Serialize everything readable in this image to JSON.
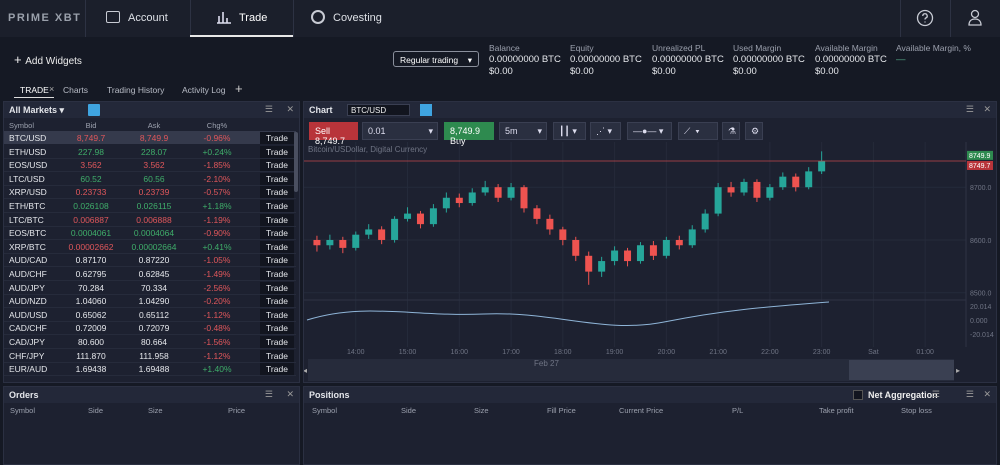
{
  "nav": {
    "logo": "PRIME XBT",
    "items": [
      "Account",
      "Trade",
      "Covesting"
    ]
  },
  "toolbar": {
    "add_widgets": "Add Widgets",
    "mode": "Regular trading",
    "stats": [
      {
        "label": "Balance",
        "btc": "0.00000000 BTC",
        "usd": "$0.00"
      },
      {
        "label": "Equity",
        "btc": "0.00000000 BTC",
        "usd": "$0.00"
      },
      {
        "label": "Unrealized PL",
        "btc": "0.00000000 BTC",
        "usd": "$0.00"
      },
      {
        "label": "Used Margin",
        "btc": "0.00000000 BTC",
        "usd": "$0.00"
      },
      {
        "label": "Available Margin",
        "btc": "0.00000000 BTC",
        "usd": "$0.00"
      },
      {
        "label": "Available Margin, %",
        "btc": "—"
      }
    ]
  },
  "tabs": [
    "TRADE",
    "Charts",
    "Trading History",
    "Activity Log"
  ],
  "markets": {
    "title": "All Markets",
    "columns": [
      "Symbol",
      "Bid",
      "Ask",
      "Chg%"
    ],
    "action": "Trade",
    "rows": [
      {
        "symbol": "BTC/USD",
        "bid": "8,749.7",
        "ask": "8,749.9",
        "chg": "-0.96%",
        "tone": "down"
      },
      {
        "symbol": "ETH/USD",
        "bid": "227.98",
        "ask": "228.07",
        "chg": "+0.24%",
        "tone": "up"
      },
      {
        "symbol": "EOS/USD",
        "bid": "3.562",
        "ask": "3.562",
        "chg": "-1.85%",
        "tone": "down"
      },
      {
        "symbol": "LTC/USD",
        "bid": "60.52",
        "ask": "60.56",
        "chg": "-2.10%",
        "tone": "up"
      },
      {
        "symbol": "XRP/USD",
        "bid": "0.23733",
        "ask": "0.23739",
        "chg": "-0.57%",
        "tone": "down"
      },
      {
        "symbol": "ETH/BTC",
        "bid": "0.026108",
        "ask": "0.026115",
        "chg": "+1.18%",
        "tone": "up"
      },
      {
        "symbol": "LTC/BTC",
        "bid": "0.006887",
        "ask": "0.006888",
        "chg": "-1.19%",
        "tone": "down"
      },
      {
        "symbol": "EOS/BTC",
        "bid": "0.0004061",
        "ask": "0.0004064",
        "chg": "-0.90%",
        "tone": "up"
      },
      {
        "symbol": "XRP/BTC",
        "bid": "0.00002662",
        "ask": "0.00002664",
        "chg": "+0.41%",
        "tone": "mixed"
      },
      {
        "symbol": "AUD/CAD",
        "bid": "0.87170",
        "ask": "0.87220",
        "chg": "-1.05%",
        "tone": "flat"
      },
      {
        "symbol": "AUD/CHF",
        "bid": "0.62795",
        "ask": "0.62845",
        "chg": "-1.49%",
        "tone": "flat"
      },
      {
        "symbol": "AUD/JPY",
        "bid": "70.284",
        "ask": "70.334",
        "chg": "-2.56%",
        "tone": "flat"
      },
      {
        "symbol": "AUD/NZD",
        "bid": "1.04060",
        "ask": "1.04290",
        "chg": "-0.20%",
        "tone": "flat"
      },
      {
        "symbol": "AUD/USD",
        "bid": "0.65062",
        "ask": "0.65112",
        "chg": "-1.12%",
        "tone": "flat"
      },
      {
        "symbol": "CAD/CHF",
        "bid": "0.72009",
        "ask": "0.72079",
        "chg": "-0.48%",
        "tone": "flat"
      },
      {
        "symbol": "CAD/JPY",
        "bid": "80.600",
        "ask": "80.664",
        "chg": "-1.56%",
        "tone": "flat"
      },
      {
        "symbol": "CHF/JPY",
        "bid": "111.870",
        "ask": "111.958",
        "chg": "-1.12%",
        "tone": "flat"
      },
      {
        "symbol": "EUR/AUD",
        "bid": "1.69438",
        "ask": "1.69488",
        "chg": "+1.40%",
        "tone": "flat"
      }
    ]
  },
  "chart_panel": {
    "title": "Chart",
    "symbol": "BTC/USD",
    "sell_label": "Sell",
    "sell_price": "8,749.7",
    "quantity": "0.01",
    "buy_price": "8,749.9",
    "buy_label": "Buy",
    "interval": "5m",
    "legend": "Bitcoin/USDollar, Digital Currency",
    "nav_label": "Feb 27",
    "oscillator_ticks": [
      "20.014",
      "0.000",
      "-20.014"
    ]
  },
  "chart_data": {
    "type": "candlestick",
    "up_color": "#26a69a",
    "down_color": "#ef5350",
    "open": [
      8600,
      8590,
      8600,
      8585,
      8610,
      8620,
      8600,
      8640,
      8650,
      8630,
      8660,
      8680,
      8670,
      8690,
      8700,
      8680,
      8700,
      8660,
      8640,
      8620,
      8600,
      8570,
      8540,
      8560,
      8580,
      8560,
      8590,
      8570,
      8600,
      8590,
      8620,
      8650,
      8700,
      8690,
      8710,
      8680,
      8700,
      8720,
      8700,
      8730
    ],
    "high": [
      8608,
      8610,
      8606,
      8616,
      8630,
      8626,
      8645,
      8662,
      8655,
      8668,
      8690,
      8688,
      8698,
      8712,
      8706,
      8708,
      8704,
      8666,
      8648,
      8625,
      8606,
      8578,
      8568,
      8588,
      8585,
      8596,
      8598,
      8606,
      8608,
      8628,
      8658,
      8708,
      8710,
      8716,
      8715,
      8706,
      8728,
      8726,
      8738,
      8768
    ],
    "low": [
      8578,
      8582,
      8575,
      8580,
      8602,
      8592,
      8595,
      8635,
      8622,
      8625,
      8652,
      8662,
      8665,
      8684,
      8672,
      8675,
      8652,
      8630,
      8610,
      8590,
      8560,
      8515,
      8530,
      8552,
      8550,
      8555,
      8562,
      8565,
      8582,
      8585,
      8614,
      8645,
      8682,
      8684,
      8672,
      8675,
      8695,
      8692,
      8696,
      8725
    ],
    "close": [
      8590,
      8600,
      8585,
      8610,
      8620,
      8600,
      8640,
      8650,
      8630,
      8660,
      8680,
      8670,
      8690,
      8700,
      8680,
      8700,
      8660,
      8640,
      8620,
      8600,
      8570,
      8540,
      8560,
      8580,
      8560,
      8590,
      8570,
      8600,
      8590,
      8620,
      8650,
      8700,
      8690,
      8710,
      8680,
      8700,
      8720,
      8700,
      8730,
      8749.7
    ],
    "ylim": [
      8490,
      8780
    ],
    "yticks": [
      {
        "value": 8700,
        "label": "8700.0"
      },
      {
        "value": 8600,
        "label": "8600.0"
      },
      {
        "value": 8500,
        "label": "8500.0"
      }
    ],
    "xlim": [
      -1,
      50
    ],
    "xticks": [
      {
        "value": 3,
        "label": "14:00"
      },
      {
        "value": 7,
        "label": "15:00"
      },
      {
        "value": 11,
        "label": "16:00"
      },
      {
        "value": 15,
        "label": "17:00"
      },
      {
        "value": 19,
        "label": "18:00"
      },
      {
        "value": 23,
        "label": "19:00"
      },
      {
        "value": 27,
        "label": "20:00"
      },
      {
        "value": 31,
        "label": "21:00"
      },
      {
        "value": 35,
        "label": "22:00"
      },
      {
        "value": 39,
        "label": "23:00"
      },
      {
        "value": 43,
        "label": "Sat"
      },
      {
        "value": 47,
        "label": "01:00"
      }
    ],
    "ask_tag": 8749.9,
    "bid_tag": 8749.7
  },
  "orders": {
    "title": "Orders",
    "columns": [
      "Symbol",
      "Side",
      "Size",
      "Price"
    ]
  },
  "positions": {
    "title": "Positions",
    "aggregation": "Net Aggregation",
    "columns": [
      "Symbol",
      "Side",
      "Size",
      "Fill Price",
      "Current Price",
      "P/L",
      "Take profit",
      "Stop loss"
    ]
  }
}
